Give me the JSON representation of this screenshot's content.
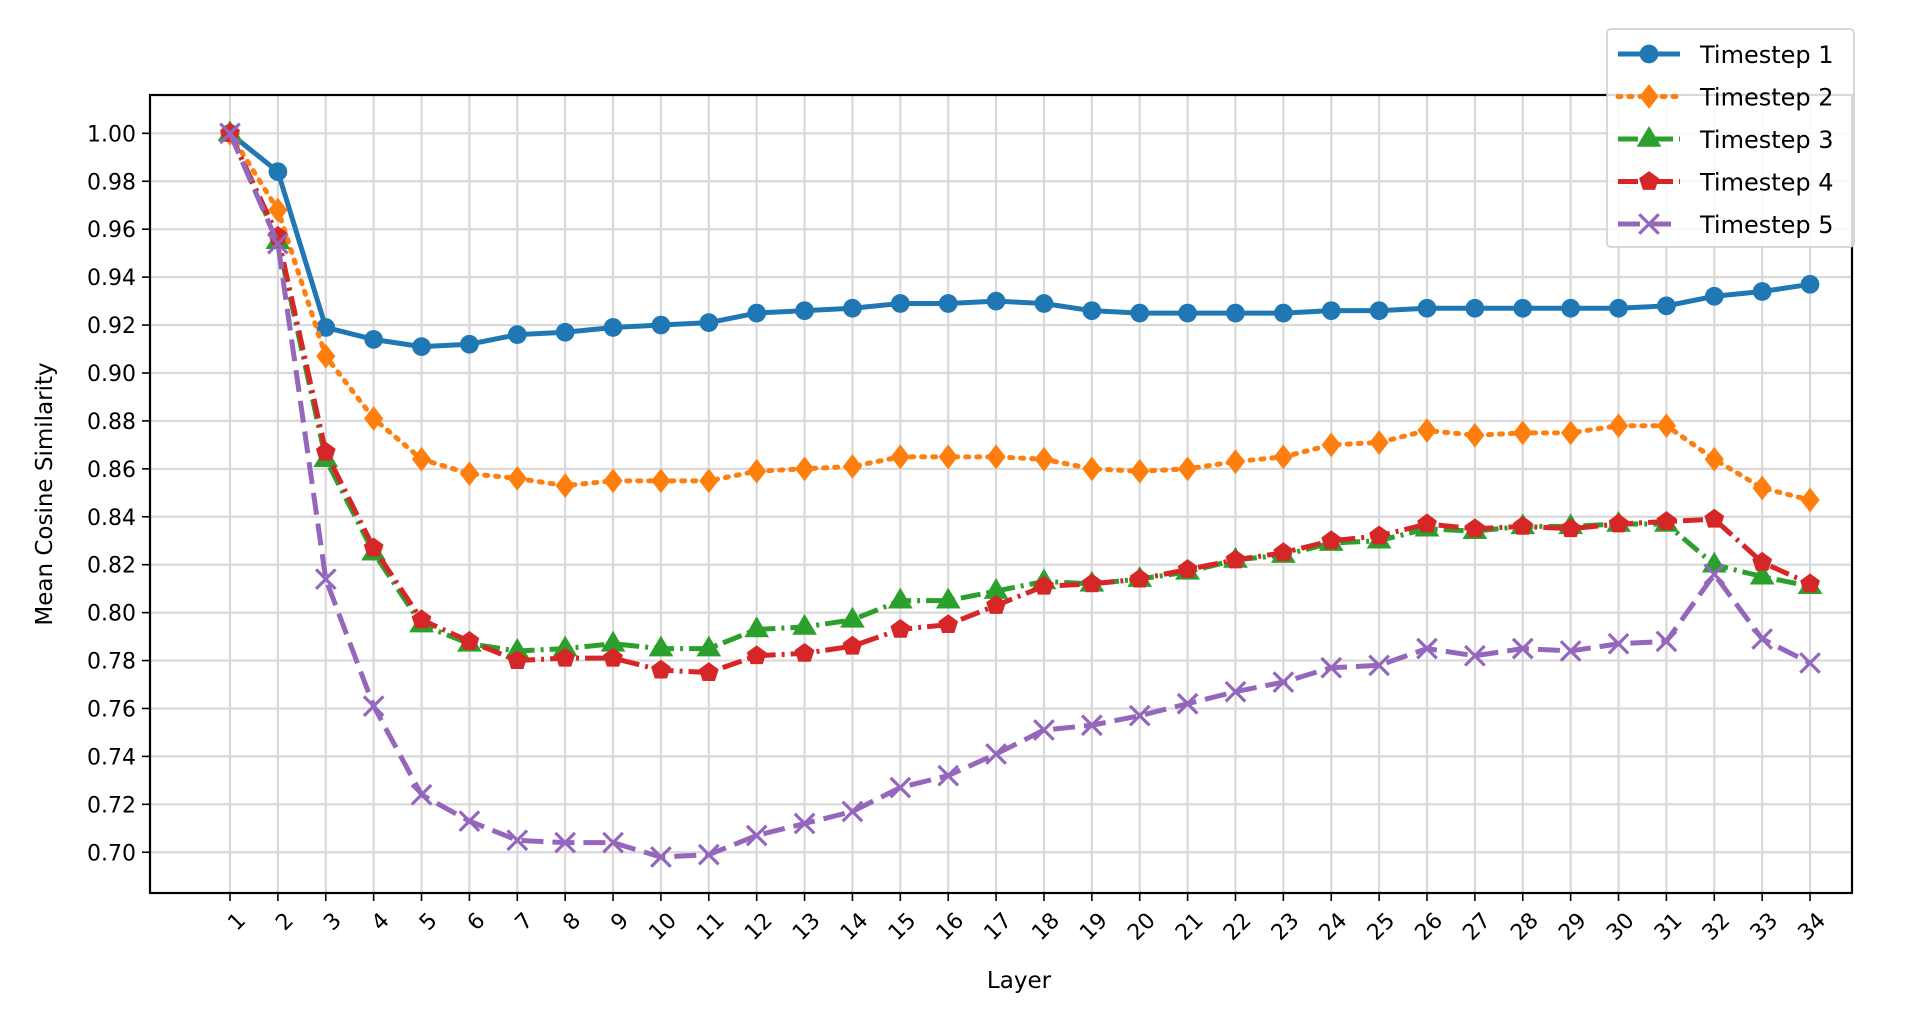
{
  "chart_data": {
    "type": "line",
    "xlabel": "Layer",
    "ylabel": "Mean Cosine Similarity",
    "categories": [
      "1",
      "2",
      "3",
      "4",
      "5",
      "6",
      "7",
      "8",
      "9",
      "10",
      "11",
      "12",
      "13",
      "14",
      "15",
      "16",
      "17",
      "18",
      "19",
      "20",
      "21",
      "22",
      "23",
      "24",
      "25",
      "26",
      "27",
      "28",
      "29",
      "30",
      "31",
      "32",
      "33",
      "34"
    ],
    "ylim": [
      0.683,
      1.016
    ],
    "yticks": [
      "0.70",
      "0.72",
      "0.74",
      "0.76",
      "0.78",
      "0.80",
      "0.82",
      "0.84",
      "0.86",
      "0.88",
      "0.90",
      "0.92",
      "0.94",
      "0.96",
      "0.98",
      "1.00"
    ],
    "grid": true,
    "legend_position": "top-right",
    "series": [
      {
        "name": "Timestep 1",
        "color": "#1f77b4",
        "line_style": "solid",
        "marker": "circle",
        "values": [
          1.0,
          0.984,
          0.919,
          0.914,
          0.911,
          0.912,
          0.916,
          0.917,
          0.919,
          0.92,
          0.921,
          0.925,
          0.926,
          0.927,
          0.929,
          0.929,
          0.93,
          0.929,
          0.926,
          0.925,
          0.925,
          0.925,
          0.925,
          0.926,
          0.926,
          0.927,
          0.927,
          0.927,
          0.927,
          0.927,
          0.928,
          0.932,
          0.934,
          0.937
        ]
      },
      {
        "name": "Timestep 2",
        "color": "#ff7f0e",
        "line_style": "dotted",
        "marker": "diamond",
        "values": [
          1.0,
          0.968,
          0.907,
          0.881,
          0.864,
          0.858,
          0.856,
          0.853,
          0.855,
          0.855,
          0.855,
          0.859,
          0.86,
          0.861,
          0.865,
          0.865,
          0.865,
          0.864,
          0.86,
          0.859,
          0.86,
          0.863,
          0.865,
          0.87,
          0.871,
          0.876,
          0.874,
          0.875,
          0.875,
          0.878,
          0.878,
          0.864,
          0.852,
          0.847
        ]
      },
      {
        "name": "Timestep 3",
        "color": "#2ca02c",
        "line_style": "dashdot",
        "marker": "triangle",
        "values": [
          1.0,
          0.955,
          0.864,
          0.825,
          0.795,
          0.787,
          0.784,
          0.785,
          0.787,
          0.785,
          0.785,
          0.793,
          0.794,
          0.797,
          0.805,
          0.805,
          0.809,
          0.813,
          0.812,
          0.814,
          0.817,
          0.822,
          0.824,
          0.829,
          0.83,
          0.835,
          0.834,
          0.836,
          0.836,
          0.837,
          0.837,
          0.82,
          0.815,
          0.811
        ]
      },
      {
        "name": "Timestep 4",
        "color": "#d62728",
        "line_style": "dashdot",
        "marker": "pentagon",
        "values": [
          1.0,
          0.957,
          0.867,
          0.827,
          0.797,
          0.788,
          0.78,
          0.781,
          0.781,
          0.776,
          0.775,
          0.782,
          0.783,
          0.786,
          0.793,
          0.795,
          0.803,
          0.811,
          0.812,
          0.814,
          0.818,
          0.822,
          0.825,
          0.83,
          0.832,
          0.837,
          0.835,
          0.836,
          0.835,
          0.837,
          0.838,
          0.839,
          0.821,
          0.812
        ]
      },
      {
        "name": "Timestep 5",
        "color": "#9467bd",
        "line_style": "dashed",
        "marker": "x",
        "values": [
          1.0,
          0.954,
          0.814,
          0.761,
          0.724,
          0.713,
          0.705,
          0.704,
          0.704,
          0.698,
          0.699,
          0.707,
          0.712,
          0.717,
          0.727,
          0.732,
          0.741,
          0.751,
          0.753,
          0.757,
          0.762,
          0.767,
          0.771,
          0.777,
          0.778,
          0.785,
          0.782,
          0.785,
          0.784,
          0.787,
          0.788,
          0.816,
          0.789,
          0.779
        ]
      }
    ]
  }
}
